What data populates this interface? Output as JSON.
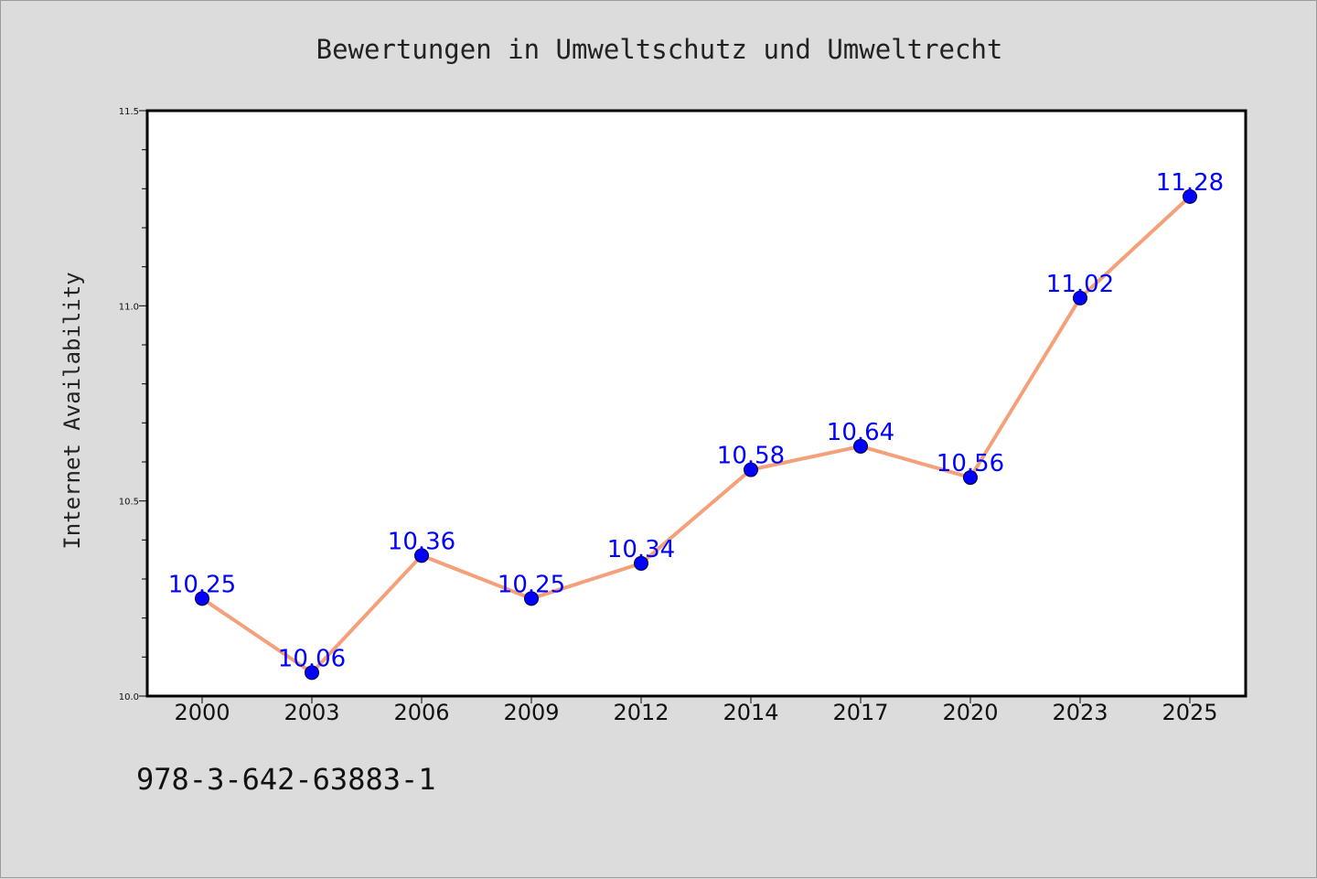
{
  "chart_data": {
    "type": "line",
    "title": "Bewertungen in Umweltschutz und Umweltrecht",
    "xlabel": "",
    "ylabel": "Internet Availability",
    "categories": [
      "2000",
      "2003",
      "2006",
      "2009",
      "2012",
      "2014",
      "2017",
      "2020",
      "2023",
      "2025"
    ],
    "values": [
      10.25,
      10.06,
      10.36,
      10.25,
      10.34,
      10.58,
      10.64,
      10.56,
      11.02,
      11.28
    ],
    "data_labels": [
      "10.25",
      "10.06",
      "10.36",
      "10.25",
      "10.34",
      "10.58",
      "10.64",
      "10.56",
      "11.02",
      "11.28"
    ],
    "ylim": [
      10.0,
      11.5
    ],
    "yticks": [
      "10.0",
      "10.5",
      "11.0",
      "11.5"
    ],
    "grid": false,
    "legend": "none",
    "colors": {
      "line": "#f4a07a",
      "marker": "#0000ff",
      "label": "#0000ff",
      "background": "#dcdcdc",
      "plot_area": "#ffffff"
    }
  },
  "footer": {
    "isbn": "978-3-642-63883-1"
  }
}
